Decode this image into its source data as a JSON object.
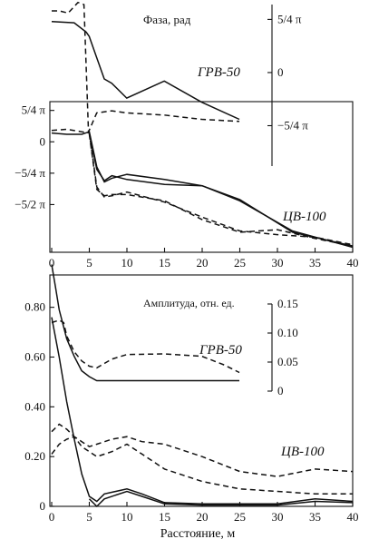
{
  "chart_data": [
    {
      "panel": "phase-grv50",
      "type": "line",
      "title": "Фаза, рад",
      "series_label": "ГРВ-50",
      "xlim": [
        0,
        25
      ],
      "y_ticks_right": [
        "5/4 π",
        "0",
        "−5/4 π"
      ],
      "y_tick_values": [
        1.25,
        0,
        -1.25
      ],
      "ylim": [
        -2.2,
        1.6
      ],
      "series": [
        {
          "style": "solid",
          "x": [
            0,
            3,
            4.6,
            5,
            6,
            7,
            8,
            10,
            15,
            20,
            25
          ],
          "y": [
            1.2,
            1.17,
            0.95,
            0.85,
            0.35,
            -0.15,
            -0.25,
            -0.6,
            -0.2,
            -0.7,
            -1.1
          ]
        },
        {
          "style": "dashed",
          "x": [
            0,
            1,
            2.2,
            3.5,
            4.3,
            4.9,
            6,
            8,
            10,
            15,
            20,
            25
          ],
          "y": [
            1.45,
            1.45,
            1.4,
            1.65,
            1.6,
            -1.4,
            -0.95,
            -0.9,
            -0.95,
            -1.0,
            -1.1,
            -1.15
          ]
        }
      ]
    },
    {
      "panel": "phase-cv100",
      "type": "line",
      "series_label": "ЦВ-100",
      "xlim": [
        0,
        40
      ],
      "x_ticks": [
        "0",
        "5",
        "10",
        "15",
        "20",
        "25",
        "30",
        "35",
        "40"
      ],
      "y_ticks_left": [
        "5/4 π",
        "0",
        "−5/4 π",
        "−5/2 π"
      ],
      "y_tick_values": [
        1.25,
        0,
        -1.25,
        -2.5
      ],
      "ylim": [
        -4.4,
        1.6
      ],
      "series": [
        {
          "style": "solid",
          "x": [
            0,
            2,
            4,
            5,
            6,
            7,
            8,
            10,
            15,
            20,
            25,
            32,
            40
          ],
          "y": [
            0.35,
            0.3,
            0.3,
            0.4,
            -1.0,
            -1.6,
            -1.45,
            -1.3,
            -1.5,
            -1.75,
            -2.3,
            -3.6,
            -4.15
          ]
        },
        {
          "style": "solid",
          "x": [
            5,
            6,
            7,
            8,
            10,
            15,
            20,
            25,
            32,
            40
          ],
          "y": [
            0.35,
            -1.1,
            -1.55,
            -1.35,
            -1.5,
            -1.7,
            -1.75,
            -2.35,
            -3.55,
            -4.2
          ]
        },
        {
          "style": "dashed",
          "x": [
            0,
            2,
            4,
            5,
            6,
            7,
            8,
            10,
            15,
            20,
            25,
            30,
            35,
            40
          ],
          "y": [
            0.45,
            0.5,
            0.4,
            0.35,
            -1.8,
            -2.2,
            -2.15,
            -2.0,
            -2.4,
            -3.0,
            -3.55,
            -3.7,
            -3.8,
            -4.1
          ]
        },
        {
          "style": "dashed",
          "x": [
            5,
            6,
            7,
            8,
            10,
            15,
            20,
            25,
            30,
            35,
            40
          ],
          "y": [
            0.3,
            -1.9,
            -2.15,
            -2.1,
            -2.1,
            -2.35,
            -3.1,
            -3.6,
            -3.5,
            -3.85,
            -4.15
          ]
        }
      ]
    },
    {
      "panel": "amplitude-grv50",
      "type": "line",
      "title": "Амплитуда, отн. ед.",
      "series_label": "ГРВ-50",
      "xlim": [
        0,
        25
      ],
      "y_ticks_right": [
        "0.15",
        "0.10",
        "0.05",
        "0"
      ],
      "y_tick_values": [
        0.15,
        0.1,
        0.05,
        0
      ],
      "ylim": [
        0,
        0.15
      ],
      "series": [
        {
          "style": "solid",
          "x": [
            0,
            0.5,
            1,
            2,
            3,
            4,
            5,
            6,
            8,
            10,
            15,
            20,
            25
          ],
          "y": [
            0.218,
            0.18,
            0.14,
            0.09,
            0.06,
            0.035,
            0.025,
            0.018,
            0.018,
            0.018,
            0.018,
            0.018,
            0.018
          ]
        },
        {
          "style": "dashed",
          "x": [
            0,
            0.5,
            1,
            1.6,
            2,
            3,
            4,
            5,
            6,
            8,
            10,
            15,
            20,
            23,
            25
          ],
          "y": [
            0.118,
            0.12,
            0.122,
            0.118,
            0.095,
            0.068,
            0.052,
            0.043,
            0.04,
            0.055,
            0.063,
            0.064,
            0.06,
            0.045,
            0.032
          ]
        }
      ]
    },
    {
      "panel": "amplitude-cv100",
      "type": "line",
      "series_label": "ЦВ-100",
      "xlabel": "Расстояние, м",
      "xlim": [
        0,
        40
      ],
      "x_ticks": [
        "0",
        "5",
        "10",
        "15",
        "20",
        "25",
        "30",
        "35",
        "40"
      ],
      "y_ticks_left": [
        "0.80",
        "0.60",
        "0.40",
        "0.20",
        "0"
      ],
      "y_tick_values": [
        0.8,
        0.6,
        0.4,
        0.2,
        0
      ],
      "ylim": [
        0,
        0.93
      ],
      "series": [
        {
          "style": "solid",
          "x": [
            0,
            1,
            2,
            3,
            4,
            5,
            6,
            7,
            10,
            12,
            15,
            20,
            25,
            30,
            35,
            40
          ],
          "y": [
            0.76,
            0.6,
            0.42,
            0.27,
            0.13,
            0.04,
            0.02,
            0.05,
            0.07,
            0.05,
            0.015,
            0.01,
            0.01,
            0.01,
            0.03,
            0.02
          ]
        },
        {
          "style": "solid",
          "x": [
            5,
            6,
            7,
            10,
            12,
            15,
            20,
            25,
            30,
            35,
            40
          ],
          "y": [
            0.03,
            0.0,
            0.03,
            0.06,
            0.04,
            0.01,
            0.005,
            0.005,
            0.005,
            0.02,
            0.015
          ]
        },
        {
          "style": "dashed",
          "x": [
            0,
            1,
            2,
            3,
            4,
            5,
            6,
            8,
            10,
            12,
            15,
            20,
            25,
            30,
            35,
            40
          ],
          "y": [
            0.21,
            0.25,
            0.27,
            0.28,
            0.26,
            0.24,
            0.25,
            0.27,
            0.28,
            0.26,
            0.25,
            0.2,
            0.14,
            0.12,
            0.15,
            0.14
          ]
        },
        {
          "style": "dashed",
          "x": [
            0,
            1,
            2,
            3,
            4,
            5,
            6,
            8,
            10,
            12,
            15,
            20,
            25,
            30,
            35,
            40
          ],
          "y": [
            0.3,
            0.33,
            0.31,
            0.28,
            0.24,
            0.22,
            0.2,
            0.22,
            0.25,
            0.21,
            0.15,
            0.1,
            0.07,
            0.06,
            0.05,
            0.05
          ]
        }
      ]
    }
  ]
}
